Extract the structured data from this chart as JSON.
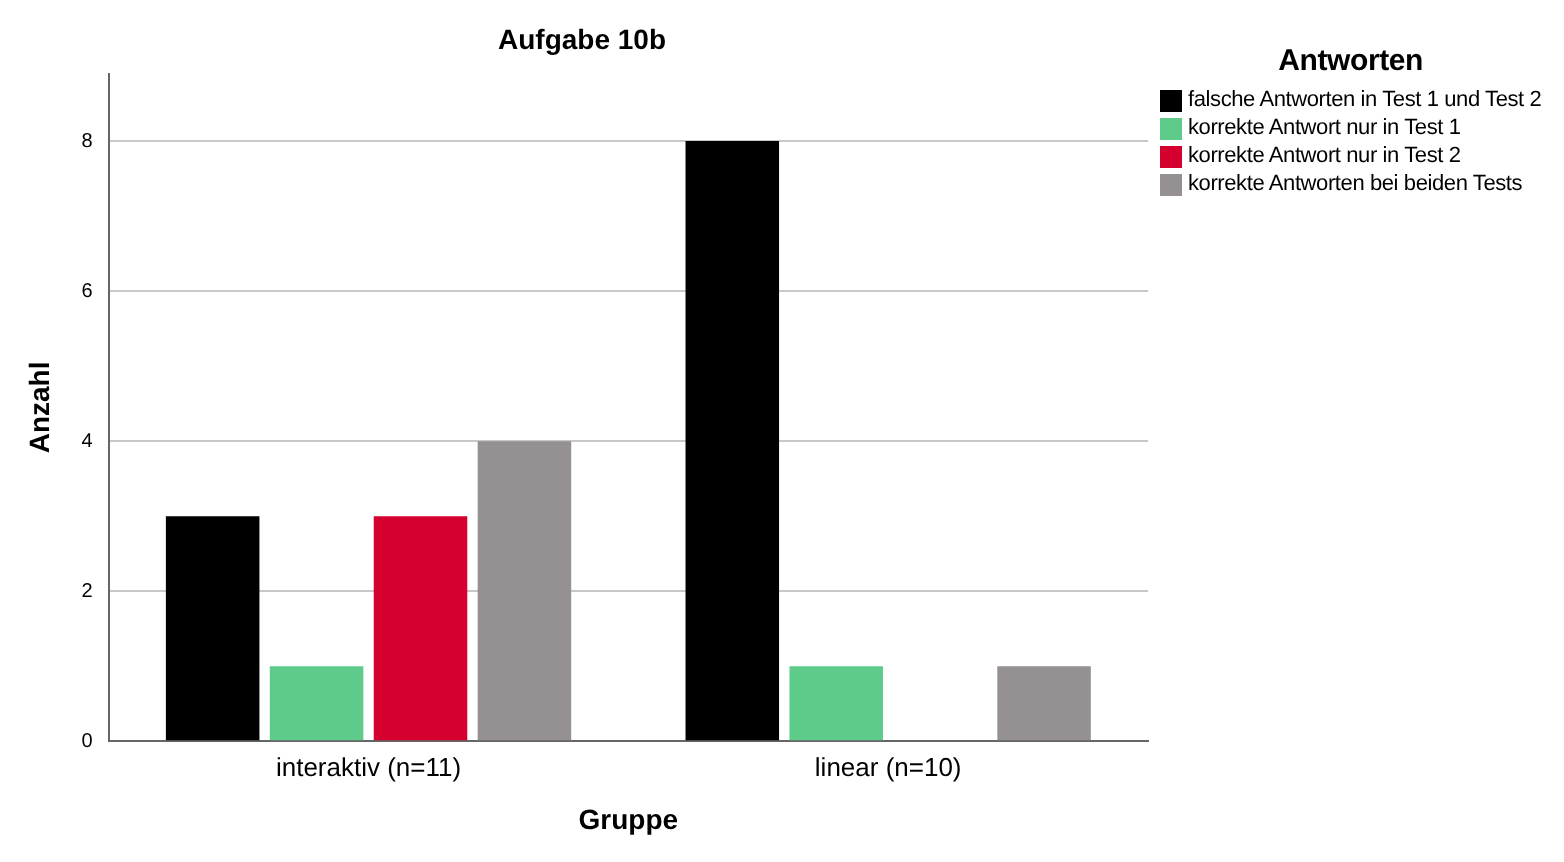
{
  "chart_data": {
    "type": "bar",
    "title": "Aufgabe 10b",
    "xlabel": "Gruppe",
    "ylabel": "Anzahl",
    "legend_title": "Antworten",
    "categories": [
      "interaktiv (n=11)",
      "linear (n=10)"
    ],
    "series": [
      {
        "name": "falsche Antworten in Test 1 und Test 2",
        "color": "#000000",
        "values": [
          3,
          8
        ]
      },
      {
        "name": "korrekte Antwort nur in Test 1",
        "color": "#5fcb8a",
        "values": [
          1,
          1
        ]
      },
      {
        "name": "korrekte Antwort nur in Test 2",
        "color": "#d5002e",
        "values": [
          3,
          0
        ]
      },
      {
        "name": "korrekte Antworten bei beiden Tests",
        "color": "#959192",
        "values": [
          4,
          1
        ]
      }
    ],
    "ylim": [
      0,
      8.9
    ],
    "yticks": [
      0,
      2,
      4,
      6,
      8
    ],
    "grid": "y",
    "legend": "top right"
  }
}
